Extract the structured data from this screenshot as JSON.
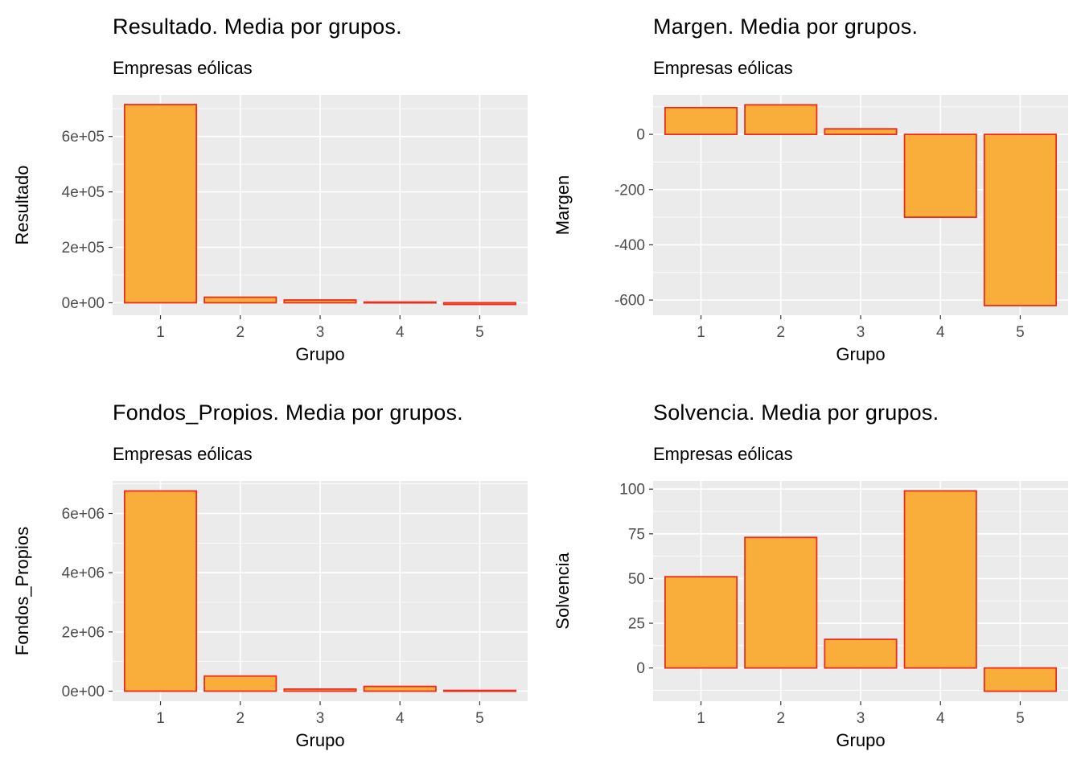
{
  "page": {
    "background": "#FFFFFF"
  },
  "colors": {
    "bar_fill": "#F9AE3B",
    "bar_stroke": "#EE2C1C",
    "panel_bg": "#EBEBEB",
    "grid": "#FFFFFF",
    "tick_text": "#4D4D4D",
    "axis_tick": "#333333",
    "title_text": "#000000"
  },
  "chart_data": [
    {
      "type": "bar",
      "title": "Resultado. Media por grupos.",
      "subtitle": "Empresas eólicas",
      "xlabel": "Grupo",
      "ylabel": "Resultado",
      "categories": [
        "1",
        "2",
        "3",
        "4",
        "5"
      ],
      "values": [
        715000,
        20000,
        10000,
        2500,
        -6000
      ],
      "ylim": [
        -45000,
        750000
      ],
      "grid": true,
      "legend": "none",
      "yticks": [
        {
          "v": 0,
          "label": "0e+00"
        },
        {
          "v": 200000,
          "label": "2e+05"
        },
        {
          "v": 400000,
          "label": "4e+05"
        },
        {
          "v": 600000,
          "label": "6e+05"
        }
      ]
    },
    {
      "type": "bar",
      "title": "Margen. Media por grupos.",
      "subtitle": "Empresas eólicas",
      "xlabel": "Grupo",
      "ylabel": "Margen",
      "categories": [
        "1",
        "2",
        "3",
        "4",
        "5"
      ],
      "values": [
        97,
        107,
        20,
        -300,
        -620
      ],
      "ylim": [
        -655,
        143
      ],
      "grid": true,
      "legend": "none",
      "yticks": [
        {
          "v": 0,
          "label": "0"
        },
        {
          "v": -200,
          "label": "-200"
        },
        {
          "v": -400,
          "label": "-400"
        },
        {
          "v": -600,
          "label": "-600"
        }
      ]
    },
    {
      "type": "bar",
      "title": "Fondos_Propios. Media por grupos.",
      "subtitle": "Empresas eólicas",
      "xlabel": "Grupo",
      "ylabel": "Fondos_Propios",
      "categories": [
        "1",
        "2",
        "3",
        "4",
        "5"
      ],
      "values": [
        6760000,
        510000,
        70000,
        160000,
        25000
      ],
      "ylim": [
        -340000,
        7100000
      ],
      "grid": true,
      "legend": "none",
      "yticks": [
        {
          "v": 0,
          "label": "0e+00"
        },
        {
          "v": 2000000,
          "label": "2e+06"
        },
        {
          "v": 4000000,
          "label": "4e+06"
        },
        {
          "v": 6000000,
          "label": "6e+06"
        }
      ]
    },
    {
      "type": "bar",
      "title": "Solvencia. Media por grupos.",
      "subtitle": "Empresas eólicas",
      "xlabel": "Grupo",
      "ylabel": "Solvencia",
      "categories": [
        "1",
        "2",
        "3",
        "4",
        "5"
      ],
      "values": [
        51,
        73,
        16,
        99,
        -13
      ],
      "ylim": [
        -18.6,
        104.6
      ],
      "grid": true,
      "legend": "none",
      "yticks": [
        {
          "v": 0,
          "label": "0"
        },
        {
          "v": 25,
          "label": "25"
        },
        {
          "v": 50,
          "label": "50"
        },
        {
          "v": 75,
          "label": "75"
        },
        {
          "v": 100,
          "label": "100"
        }
      ]
    }
  ]
}
